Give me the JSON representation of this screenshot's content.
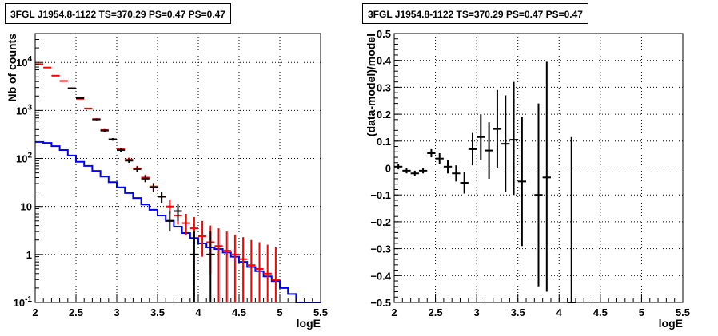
{
  "chart_data": [
    {
      "type": "scatter",
      "title": "3FGL J1954.8-1122 TS=370.29 PS=0.47 PS=0.47",
      "xlabel": "logE",
      "ylabel": "Nb of counts",
      "xlim": [
        2,
        5.5
      ],
      "ylim": [
        0.1,
        40000
      ],
      "yscale": "log",
      "grid": true,
      "x_ticks": [
        "2",
        "2.5",
        "3",
        "3.5",
        "4",
        "4.5",
        "5",
        "5.5"
      ],
      "y_ticks": [
        "10^{-1}",
        "1",
        "10",
        "10^{2}",
        "10^{3}",
        "10^{4}"
      ],
      "series": [
        {
          "kind": "step",
          "color": "#0000ff",
          "bins": [
            2.0,
            2.1,
            2.2,
            2.3,
            2.4,
            2.5,
            2.6,
            2.7,
            2.8,
            2.9,
            3.0,
            3.1,
            3.2,
            3.3,
            3.4,
            3.5,
            3.6,
            3.7,
            3.8,
            3.9,
            4.0,
            4.1,
            4.2,
            4.3,
            4.4,
            4.5,
            4.6,
            4.7,
            4.8,
            4.9,
            5.0,
            5.1,
            5.2,
            5.3,
            5.4,
            5.5
          ],
          "values": [
            220,
            210,
            180,
            150,
            115,
            85,
            70,
            55,
            42,
            32,
            25,
            19,
            15,
            11,
            8.5,
            6.5,
            5,
            3.8,
            2.8,
            2.2,
            1.7,
            1.4,
            1.3,
            1.1,
            0.9,
            0.7,
            0.55,
            0.45,
            0.35,
            0.28,
            0.2,
            0.15,
            0.1,
            0.1,
            0.1
          ]
        },
        {
          "kind": "errorbar",
          "color": "#ff0000",
          "x": [
            2.05,
            2.15,
            2.25,
            2.35,
            2.45,
            2.55,
            2.65,
            2.75,
            2.85,
            2.95,
            3.05,
            3.15,
            3.25,
            3.35,
            3.45,
            3.55,
            3.65,
            3.75,
            3.85,
            3.95,
            4.05,
            4.15,
            4.25,
            4.35,
            4.45,
            4.55,
            4.65,
            4.75,
            4.85,
            4.95
          ],
          "y": [
            9200,
            7800,
            5300,
            4100,
            2850,
            1750,
            1100,
            660,
            390,
            250,
            155,
            95,
            62,
            40,
            26,
            16,
            10,
            6.5,
            4.5,
            3.5,
            2.4,
            1.8,
            1.5,
            1.2,
            1.0,
            0.8,
            0.6,
            0.5,
            0.4,
            0.3
          ],
          "y_low": [
            9000,
            7600,
            5200,
            4000,
            2750,
            1700,
            1060,
            630,
            370,
            235,
            143,
            86,
            54,
            34,
            21,
            12,
            7,
            4.2,
            2.5,
            1.6,
            0.9,
            0.4,
            0.1,
            0.1,
            0.1,
            0.1,
            0.1,
            0.1,
            0.1,
            0.1
          ],
          "y_high": [
            9400,
            8000,
            5400,
            4200,
            2950,
            1800,
            1140,
            690,
            410,
            265,
            167,
            104,
            70,
            46,
            31,
            20,
            14,
            9,
            7,
            6,
            5,
            4,
            3.5,
            3,
            2.6,
            2.3,
            2.0,
            1.8,
            1.6,
            1.4
          ]
        },
        {
          "kind": "errorbar",
          "color": "#000000",
          "x": [
            2.45,
            2.55,
            2.75,
            2.85,
            2.95,
            3.05,
            3.15,
            3.25,
            3.35,
            3.45,
            3.55,
            3.65,
            3.75,
            3.95,
            4.15
          ],
          "y": [
            2900,
            1800,
            650,
            380,
            250,
            150,
            90,
            60,
            38,
            25,
            16,
            5,
            8,
            1,
            1
          ],
          "y_low": [
            2800,
            1740,
            620,
            360,
            235,
            138,
            81,
            52,
            32,
            20,
            12,
            3,
            5,
            0.1,
            0.1
          ],
          "y_high": [
            3000,
            1860,
            680,
            400,
            265,
            162,
            99,
            68,
            44,
            30,
            20,
            8,
            11,
            3,
            3
          ]
        }
      ]
    },
    {
      "type": "scatter",
      "title": "3FGL J1954.8-1122 TS=370.29 PS=0.47 PS=0.47",
      "xlabel": "logE",
      "ylabel": "(data-model)/model",
      "xlim": [
        2,
        5.5
      ],
      "ylim": [
        -0.5,
        0.5
      ],
      "grid": true,
      "x_ticks": [
        "2",
        "2.5",
        "3",
        "3.5",
        "4",
        "4.5",
        "5",
        "5.5"
      ],
      "y_ticks": [
        "−0.5",
        "−0.4",
        "−0.3",
        "−0.2",
        "−0.1",
        "0",
        "0.1",
        "0.2",
        "0.3",
        "0.4",
        "0.5"
      ],
      "series": [
        {
          "kind": "errorbar",
          "color": "#000000",
          "x": [
            2.05,
            2.15,
            2.25,
            2.35,
            2.45,
            2.55,
            2.65,
            2.75,
            2.85,
            2.95,
            3.05,
            3.15,
            3.25,
            3.35,
            3.45,
            3.55,
            3.75,
            3.85,
            4.15
          ],
          "y": [
            0.005,
            -0.01,
            -0.02,
            -0.01,
            0.055,
            0.035,
            0.005,
            -0.02,
            -0.055,
            0.07,
            0.115,
            0.065,
            0.145,
            0.09,
            0.105,
            -0.05,
            -0.1,
            -0.035,
            -0.5
          ],
          "y_low": [
            -0.005,
            -0.02,
            -0.03,
            -0.02,
            0.04,
            0.015,
            -0.02,
            -0.05,
            -0.095,
            0.01,
            0.03,
            -0.04,
            0.0,
            -0.09,
            -0.1,
            -0.29,
            -0.44,
            -0.46,
            -0.5
          ],
          "y_high": [
            0.015,
            0.0,
            -0.01,
            0.0,
            0.07,
            0.055,
            0.03,
            0.01,
            -0.015,
            0.13,
            0.2,
            0.17,
            0.29,
            0.27,
            0.32,
            0.19,
            0.24,
            0.395,
            0.115
          ]
        }
      ]
    }
  ]
}
